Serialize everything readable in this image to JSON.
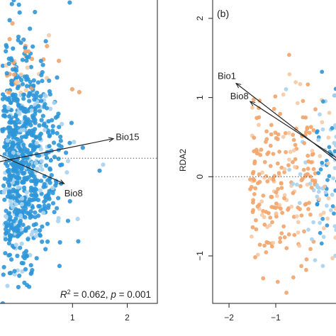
{
  "chart_data": [
    {
      "type": "scatter",
      "panel_label": "",
      "xlabel": "",
      "ylabel": "",
      "xlim": [
        -0.35,
        2.55
      ],
      "ylim": [
        -2.0,
        2.2
      ],
      "x_ticks": [
        {
          "value": 1,
          "label": "1"
        },
        {
          "value": 2,
          "label": "2"
        }
      ],
      "y_ticks": [],
      "reference_line": {
        "axis": "y",
        "value": 0,
        "style": "dotted"
      },
      "annotation": {
        "r2_label": "R",
        "r2_sup": "2",
        "r2_value": " = 0.062, ",
        "p_label": "p",
        "p_value": " = 0.001"
      },
      "arrows": [
        {
          "name": "Bio15",
          "from": [
            -0.35,
            -0.05
          ],
          "to": [
            1.75,
            0.27
          ]
        },
        {
          "name": "Bio8",
          "from": [
            -0.35,
            0.05
          ],
          "to": [
            0.85,
            -0.35
          ]
        }
      ],
      "colors": {
        "blue": "#2e96d8",
        "light_blue": "#a9d3ee",
        "orange": "#f2a46a",
        "light_orange": "#f7c9a3"
      },
      "points_note_free": true
    },
    {
      "type": "scatter",
      "panel_label": "(b)",
      "xlabel": "",
      "ylabel": "RDA2",
      "xlim": [
        -2.35,
        0.35
      ],
      "ylim": [
        -1.6,
        2.25
      ],
      "x_ticks": [
        {
          "value": -2,
          "label": "−2"
        },
        {
          "value": -1,
          "label": "−1"
        }
      ],
      "y_ticks": [
        {
          "value": -1,
          "label": "−1"
        },
        {
          "value": 0,
          "label": "0"
        },
        {
          "value": 1,
          "label": "1"
        },
        {
          "value": 2,
          "label": "2"
        }
      ],
      "reference_line": {
        "axis": "y",
        "value": 0,
        "style": "dotted"
      },
      "arrows": [
        {
          "name": "Bio1",
          "from": [
            0.35,
            0.18
          ],
          "to": [
            -1.85,
            1.18
          ]
        },
        {
          "name": "Bio8",
          "from": [
            0.35,
            0.22
          ],
          "to": [
            -1.55,
            0.95
          ]
        }
      ],
      "colors": {
        "blue": "#2e96d8",
        "light_blue": "#a9d3ee",
        "orange": "#f2a46a",
        "light_orange": "#f7c9a3"
      }
    }
  ]
}
